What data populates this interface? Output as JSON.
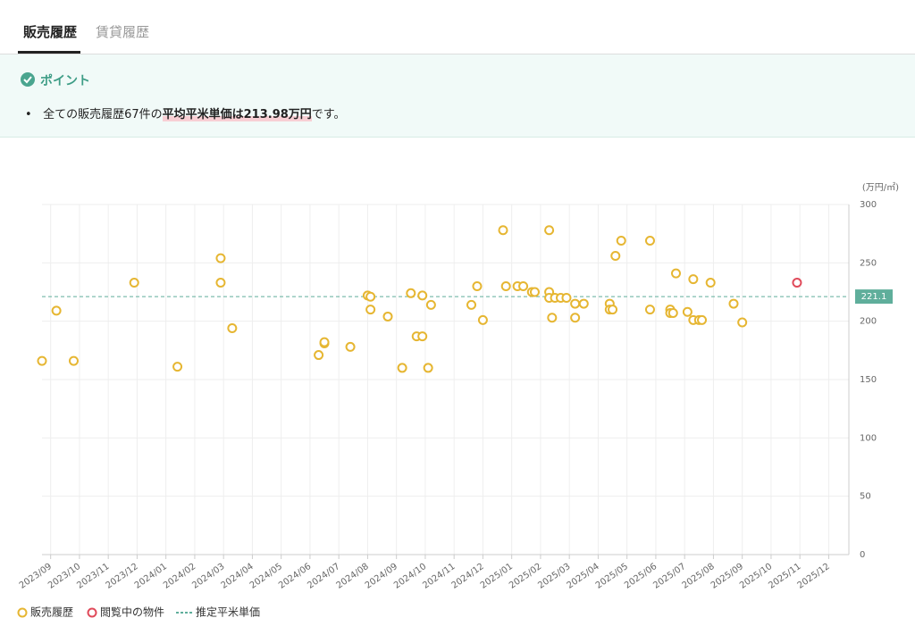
{
  "tabs": [
    "販売履歴",
    "賃貸履歴"
  ],
  "point": {
    "title": "ポイント",
    "prefix": "全ての販売履歴67件の",
    "highlight": "平均平米単価は213.98万円",
    "suffix": "です。"
  },
  "chart_data": {
    "type": "scatter",
    "y_unit": "(万円/㎡)",
    "xlim": [
      -0.3,
      27.7
    ],
    "xticks": [
      {
        "value": 0,
        "label": "2023/09"
      },
      {
        "value": 1,
        "label": "2023/10"
      },
      {
        "value": 2,
        "label": "2023/11"
      },
      {
        "value": 3,
        "label": "2023/12"
      },
      {
        "value": 4,
        "label": "2024/01"
      },
      {
        "value": 5,
        "label": "2024/02"
      },
      {
        "value": 6,
        "label": "2024/03"
      },
      {
        "value": 7,
        "label": "2024/04"
      },
      {
        "value": 8,
        "label": "2024/05"
      },
      {
        "value": 9,
        "label": "2024/06"
      },
      {
        "value": 10,
        "label": "2024/07"
      },
      {
        "value": 11,
        "label": "2024/08"
      },
      {
        "value": 12,
        "label": "2024/09"
      },
      {
        "value": 13,
        "label": "2024/10"
      },
      {
        "value": 14,
        "label": "2024/11"
      },
      {
        "value": 15,
        "label": "2024/12"
      },
      {
        "value": 16,
        "label": "2025/01"
      },
      {
        "value": 17,
        "label": "2025/02"
      },
      {
        "value": 18,
        "label": "2025/03"
      },
      {
        "value": 19,
        "label": "2025/04"
      },
      {
        "value": 20,
        "label": "2025/05"
      },
      {
        "value": 21,
        "label": "2025/06"
      },
      {
        "value": 22,
        "label": "2025/07"
      },
      {
        "value": 23,
        "label": "2025/08"
      },
      {
        "value": 24,
        "label": "2025/09"
      },
      {
        "value": 25,
        "label": "2025/10"
      },
      {
        "value": 26,
        "label": "2025/11"
      },
      {
        "value": 27,
        "label": "2025/12"
      }
    ],
    "ylim": [
      0,
      300
    ],
    "yticks": [
      0,
      50,
      100,
      150,
      200,
      250,
      300
    ],
    "grid": true,
    "series": [
      {
        "name": "販売履歴",
        "color": "#e6b632",
        "x": [
          -0.3,
          0.2,
          0.8,
          2.9,
          4.4,
          5.9,
          5.9,
          6.3,
          9.3,
          9.5,
          9.5,
          10.4,
          11.0,
          11.1,
          11.1,
          11.7,
          12.2,
          12.5,
          12.7,
          12.9,
          12.9,
          13.1,
          13.2,
          14.6,
          14.8,
          15.0,
          15.7,
          15.8,
          16.2,
          16.4,
          16.7,
          16.8,
          17.3,
          17.3,
          17.3,
          17.4,
          17.5,
          17.7,
          17.9,
          18.2,
          18.2,
          18.5,
          19.4,
          19.4,
          19.5,
          19.6,
          19.8,
          20.8,
          20.8,
          21.5,
          21.5,
          21.6,
          21.7,
          22.1,
          22.3,
          22.3,
          22.5,
          22.6,
          22.9,
          23.7,
          24.0
        ],
        "values": [
          166,
          209,
          166,
          233,
          161,
          254,
          233,
          194,
          171,
          181,
          182,
          178,
          222,
          221,
          210,
          204,
          160,
          224,
          187,
          187,
          222,
          160,
          214,
          214,
          230,
          201,
          278,
          230,
          230,
          230,
          225,
          225,
          278,
          225,
          220,
          203,
          220,
          220,
          220,
          215,
          203,
          215,
          215,
          210,
          210,
          256,
          269,
          269,
          210,
          210,
          207,
          207,
          241,
          208,
          236,
          201,
          201,
          201,
          233,
          215,
          199
        ]
      },
      {
        "name": "閲覧中の物件",
        "color": "#e04a5a",
        "x": [
          25.9
        ],
        "values": [
          233
        ]
      }
    ],
    "reference_line": {
      "name": "推定平米単価",
      "value": 221.1,
      "color": "#5fae9b"
    }
  }
}
